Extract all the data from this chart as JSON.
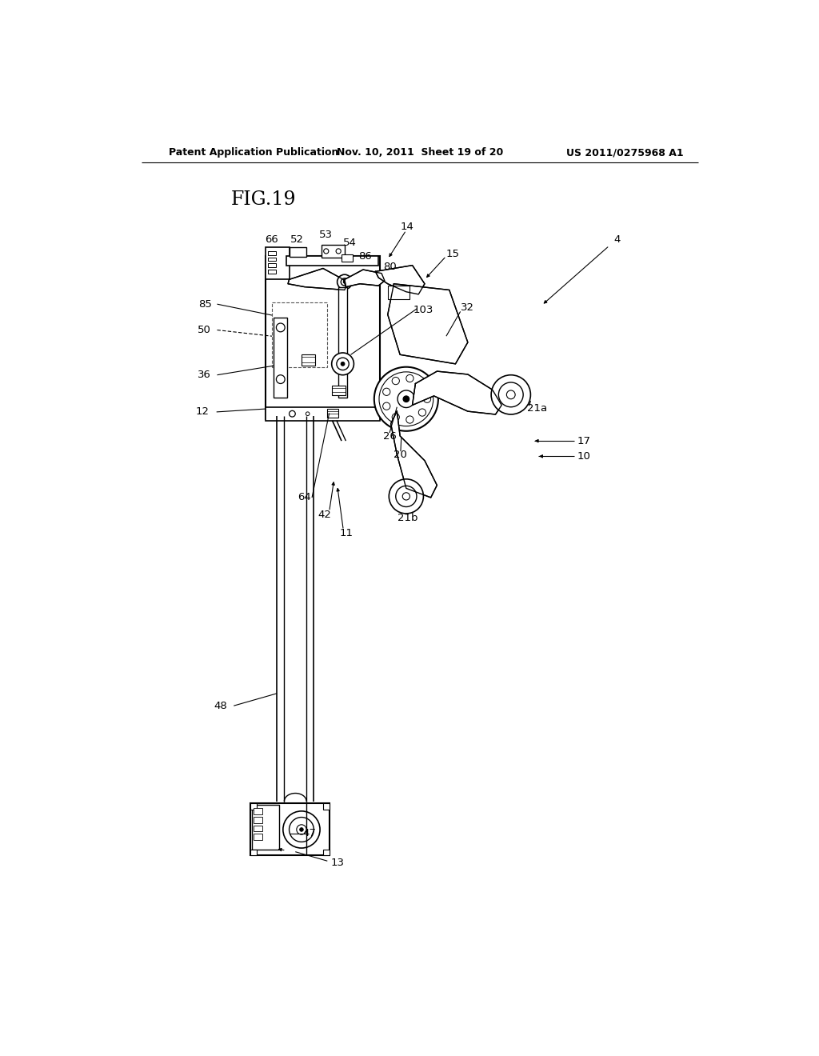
{
  "bg_color": "#ffffff",
  "line_color": "#000000",
  "header_left": "Patent Application Publication",
  "header_center": "Nov. 10, 2011  Sheet 19 of 20",
  "header_right": "US 2011/0275968 A1",
  "fig_label": "FIG.19"
}
